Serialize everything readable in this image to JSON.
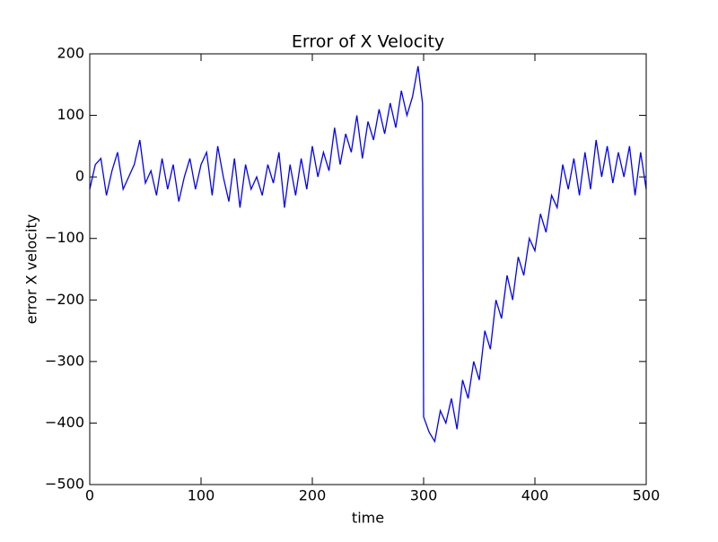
{
  "chart_data": {
    "type": "line",
    "title": "Error of X Velocity",
    "x_label": "time",
    "y_label": "error X velocity",
    "color": "#0000ff",
    "x": [
      0,
      5,
      10,
      15,
      20,
      25,
      30,
      35,
      40,
      45,
      50,
      55,
      60,
      65,
      70,
      75,
      80,
      85,
      90,
      95,
      100,
      105,
      110,
      115,
      120,
      125,
      130,
      135,
      140,
      145,
      150,
      155,
      160,
      165,
      170,
      175,
      180,
      185,
      190,
      195,
      200,
      205,
      210,
      215,
      220,
      225,
      230,
      235,
      240,
      245,
      250,
      255,
      260,
      265,
      270,
      275,
      280,
      285,
      290,
      295,
      299,
      300,
      305,
      310,
      315,
      320,
      325,
      330,
      335,
      340,
      345,
      350,
      355,
      360,
      365,
      370,
      375,
      380,
      385,
      390,
      395,
      400,
      405,
      410,
      415,
      420,
      425,
      430,
      435,
      440,
      445,
      450,
      455,
      460,
      465,
      470,
      475,
      480,
      485,
      490,
      495,
      500
    ],
    "values": [
      -20,
      20,
      30,
      -30,
      10,
      40,
      -20,
      0,
      20,
      60,
      -10,
      10,
      -30,
      30,
      -20,
      20,
      -40,
      0,
      30,
      -20,
      20,
      40,
      -30,
      50,
      0,
      -40,
      30,
      -50,
      20,
      -20,
      0,
      -30,
      20,
      -10,
      40,
      -50,
      20,
      -30,
      30,
      -20,
      50,
      0,
      40,
      10,
      80,
      20,
      70,
      40,
      100,
      30,
      90,
      60,
      110,
      70,
      120,
      80,
      140,
      100,
      130,
      180,
      120,
      -390,
      -415,
      -430,
      -380,
      -400,
      -360,
      -410,
      -330,
      -360,
      -300,
      -330,
      -250,
      -280,
      -200,
      -230,
      -160,
      -200,
      -130,
      -160,
      -100,
      -120,
      -60,
      -90,
      -30,
      -50,
      20,
      -20,
      30,
      -30,
      40,
      -20,
      60,
      0,
      50,
      -10,
      40,
      0,
      50,
      -30,
      40,
      -20
    ],
    "xlim": [
      0,
      500
    ],
    "ylim": [
      -500,
      200
    ],
    "xticks": [
      0,
      100,
      200,
      300,
      400,
      500
    ],
    "yticks": [
      {
        "value": -500,
        "label": "−500"
      },
      {
        "value": -400,
        "label": "−400"
      },
      {
        "value": -300,
        "label": "−300"
      },
      {
        "value": -200,
        "label": "−200"
      },
      {
        "value": -100,
        "label": "−100"
      },
      0,
      100,
      200
    ]
  }
}
